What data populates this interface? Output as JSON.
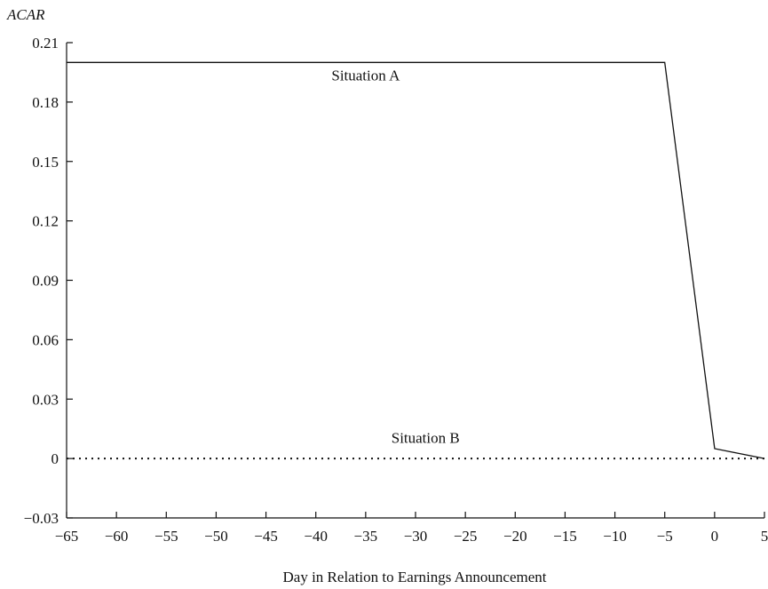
{
  "chart_data": {
    "type": "line",
    "title": "",
    "xlabel": "Day in Relation to Earnings Announcement",
    "ylabel": "ACAR",
    "xlim": [
      -65,
      5
    ],
    "ylim": [
      -0.03,
      0.21
    ],
    "x_ticks": [
      -65,
      -60,
      -55,
      -50,
      -45,
      -40,
      -35,
      -30,
      -25,
      -20,
      -15,
      -10,
      -5,
      0,
      5
    ],
    "x_tick_labels": [
      "−65",
      "−60",
      "−55",
      "−50",
      "−45",
      "−40",
      "−35",
      "−30",
      "−25",
      "−20",
      "−15",
      "−10",
      "−5",
      "0",
      "5"
    ],
    "y_ticks": [
      -0.03,
      0,
      0.03,
      0.06,
      0.09,
      0.12,
      0.15,
      0.18,
      0.21
    ],
    "y_tick_labels": [
      "−0.03",
      "0",
      "0.03",
      "0.06",
      "0.09",
      "0.12",
      "0.15",
      "0.18",
      "0.21"
    ],
    "grid": false,
    "series": [
      {
        "name": "Situation A",
        "style": "solid",
        "color": "#111111",
        "x": [
          -65,
          -5,
          0,
          5
        ],
        "y": [
          0.2,
          0.2,
          0.005,
          0
        ]
      },
      {
        "name": "Situation B",
        "style": "dotted",
        "color": "#111111",
        "x": [
          -65,
          5
        ],
        "y": [
          0,
          0
        ]
      }
    ],
    "annotations": [
      {
        "text": "Situation A",
        "x": -35,
        "y": 0.191
      },
      {
        "text": "Situation B",
        "x": -29,
        "y": 0.008
      }
    ]
  }
}
